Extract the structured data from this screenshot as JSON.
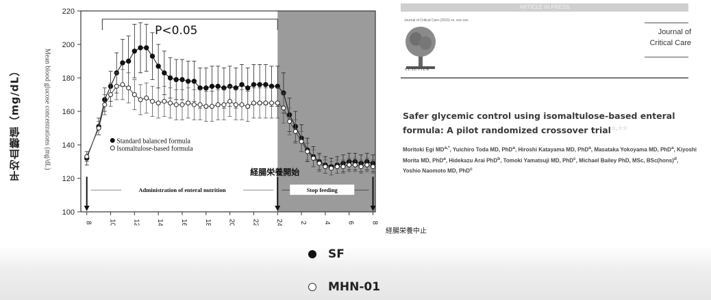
{
  "chart_data": {
    "type": "line",
    "ylabel_en": "Mean blood glucose concentrations (mg/dL)",
    "ylabel_ja": "平均血糖値（mg/dL）",
    "ylim": [
      100,
      220
    ],
    "yticks": [
      100,
      120,
      140,
      160,
      180,
      200,
      220
    ],
    "xlabel_ja": "経腸栄養中止",
    "x_tick_labels": [
      "8",
      "10",
      "12",
      "14",
      "16",
      "18",
      "20",
      "22",
      "24",
      "2",
      "4",
      "6",
      "8"
    ],
    "significance": "P<0.05",
    "shaded_region_label_ja": "経腸栄養開始",
    "phase_labels": [
      "Administration of enteral nutrition",
      "Stop feeding"
    ],
    "legend": [
      "Standard balanced formula",
      "Isomaltulose-based formula"
    ],
    "series": [
      {
        "name": "Standard balanced formula",
        "marker": "filled",
        "x": [
          8,
          9,
          9.5,
          10,
          10.5,
          11,
          11.5,
          12,
          12.5,
          13,
          13.5,
          14,
          14.5,
          15,
          15.5,
          16,
          16.5,
          17,
          17.5,
          18,
          18.5,
          19,
          19.5,
          20,
          20.5,
          21,
          21.5,
          22,
          22.5,
          23,
          23.5,
          24,
          24.5,
          25,
          25.5,
          26,
          26.5,
          27,
          27.5,
          28,
          28.5,
          29,
          29.5,
          30,
          30.5,
          31,
          31.5,
          32
        ],
        "values": [
          132,
          151,
          167,
          175,
          183,
          189,
          190,
          196,
          198,
          198,
          193,
          187,
          183,
          180,
          179,
          179,
          178,
          178,
          174,
          174,
          175,
          175,
          174,
          175,
          174,
          176,
          174,
          176,
          176,
          176,
          175,
          175,
          171,
          158,
          151,
          144,
          137,
          133,
          130,
          128,
          127,
          128,
          129,
          130,
          130,
          129,
          130,
          129
        ],
        "error": [
          4,
          5,
          7,
          9,
          12,
          14,
          15,
          16,
          15,
          14,
          14,
          13,
          13,
          12,
          12,
          12,
          12,
          12,
          12,
          12,
          12,
          12,
          12,
          12,
          12,
          12,
          12,
          12,
          12,
          12,
          12,
          12,
          12,
          10,
          9,
          8,
          7,
          6,
          5,
          5,
          5,
          5,
          5,
          5,
          5,
          5,
          5,
          5
        ]
      },
      {
        "name": "Isomaltulose-based formula",
        "marker": "open",
        "x": [
          8,
          9,
          9.5,
          10,
          10.5,
          11,
          11.5,
          12,
          12.5,
          13,
          13.5,
          14,
          14.5,
          15,
          15.5,
          16,
          16.5,
          17,
          17.5,
          18,
          18.5,
          19,
          19.5,
          20,
          20.5,
          21,
          21.5,
          22,
          22.5,
          23,
          23.5,
          24,
          24.5,
          25,
          25.5,
          26,
          26.5,
          27,
          27.5,
          28,
          28.5,
          29,
          29.5,
          30,
          30.5,
          31,
          31.5,
          32
        ],
        "values": [
          133,
          150,
          164,
          170,
          175,
          176,
          174,
          170,
          167,
          168,
          166,
          165,
          166,
          165,
          164,
          164,
          165,
          164,
          164,
          163,
          163,
          164,
          164,
          166,
          164,
          164,
          163,
          165,
          165,
          165,
          165,
          165,
          162,
          154,
          148,
          142,
          136,
          132,
          129,
          127,
          126,
          127,
          127,
          128,
          128,
          127,
          128,
          127
        ],
        "error": [
          3,
          4,
          6,
          7,
          8,
          9,
          9,
          9,
          9,
          9,
          9,
          9,
          9,
          9,
          9,
          9,
          9,
          9,
          9,
          9,
          9,
          9,
          9,
          9,
          9,
          9,
          9,
          9,
          9,
          9,
          9,
          9,
          9,
          8,
          7,
          6,
          5,
          5,
          5,
          4,
          4,
          4,
          4,
          4,
          4,
          4,
          4,
          4
        ]
      }
    ]
  },
  "paper": {
    "header_bar": "ARTICLE IN PRESS",
    "meta": "Journal of Critical Care (2015) xx, xxx–xxx",
    "publisher": "ELSEVIER",
    "journal_line1": "Journal of",
    "journal_line2": "Critical Care",
    "title": "Safer glycemic control using isomaltulose-based enteral formula: A pilot randomized crossover trial",
    "title_marks": "☆,☆☆",
    "authors_1": "Moritoki Egi MD",
    "authors_2": "a,*",
    "authors_3": ", Yuichiro Toda MD, PhD",
    "authors_4": "a",
    "authors_5": ", Hiroshi Katayama MD, PhD",
    "authors_6": "a",
    "authors_7": ", Masataka Yokoyama MD, PhD",
    "authors_8": "a",
    "authors_9": ", Kiyoshi Morita MD, PhD",
    "authors_10": "a",
    "authors_11": ", Hidekazu Arai PhD",
    "authors_12": "b",
    "authors_13": ", Tomoki Yamatsuji MD, PhD",
    "authors_14": "c",
    "authors_15": ", Michael Bailey PhD, MSc, BSc(hons)",
    "authors_16": "d",
    "authors_17": ", Yoshio Naomoto MD, PhD",
    "authors_18": "c"
  },
  "legend_bottom": {
    "sf_label": "SF",
    "mhn_label": "MHN-01"
  }
}
